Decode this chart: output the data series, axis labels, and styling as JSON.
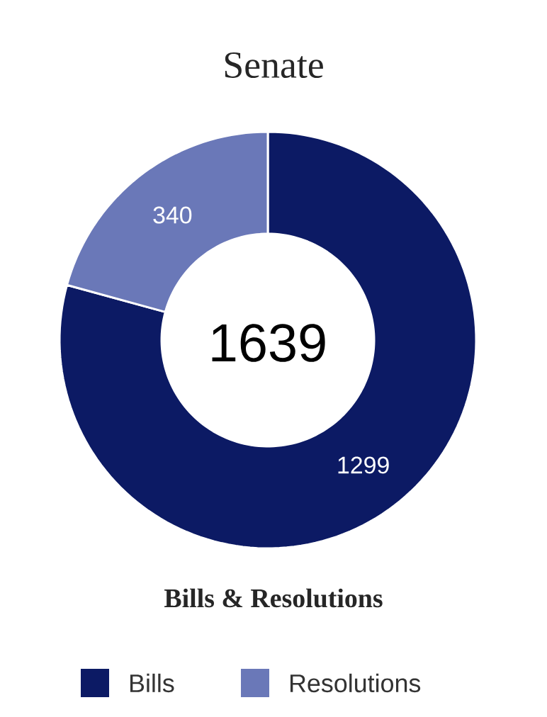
{
  "chart_data": {
    "type": "donut",
    "title": "Senate",
    "xlabel": "Bills & Resolutions",
    "categories": [
      "Bills",
      "Resolutions"
    ],
    "values": [
      1299,
      340
    ],
    "colors": [
      "#0c1a64",
      "#6a78b8"
    ],
    "annotations": [
      "1639"
    ],
    "data_labels": true,
    "legend": "bottom"
  }
}
